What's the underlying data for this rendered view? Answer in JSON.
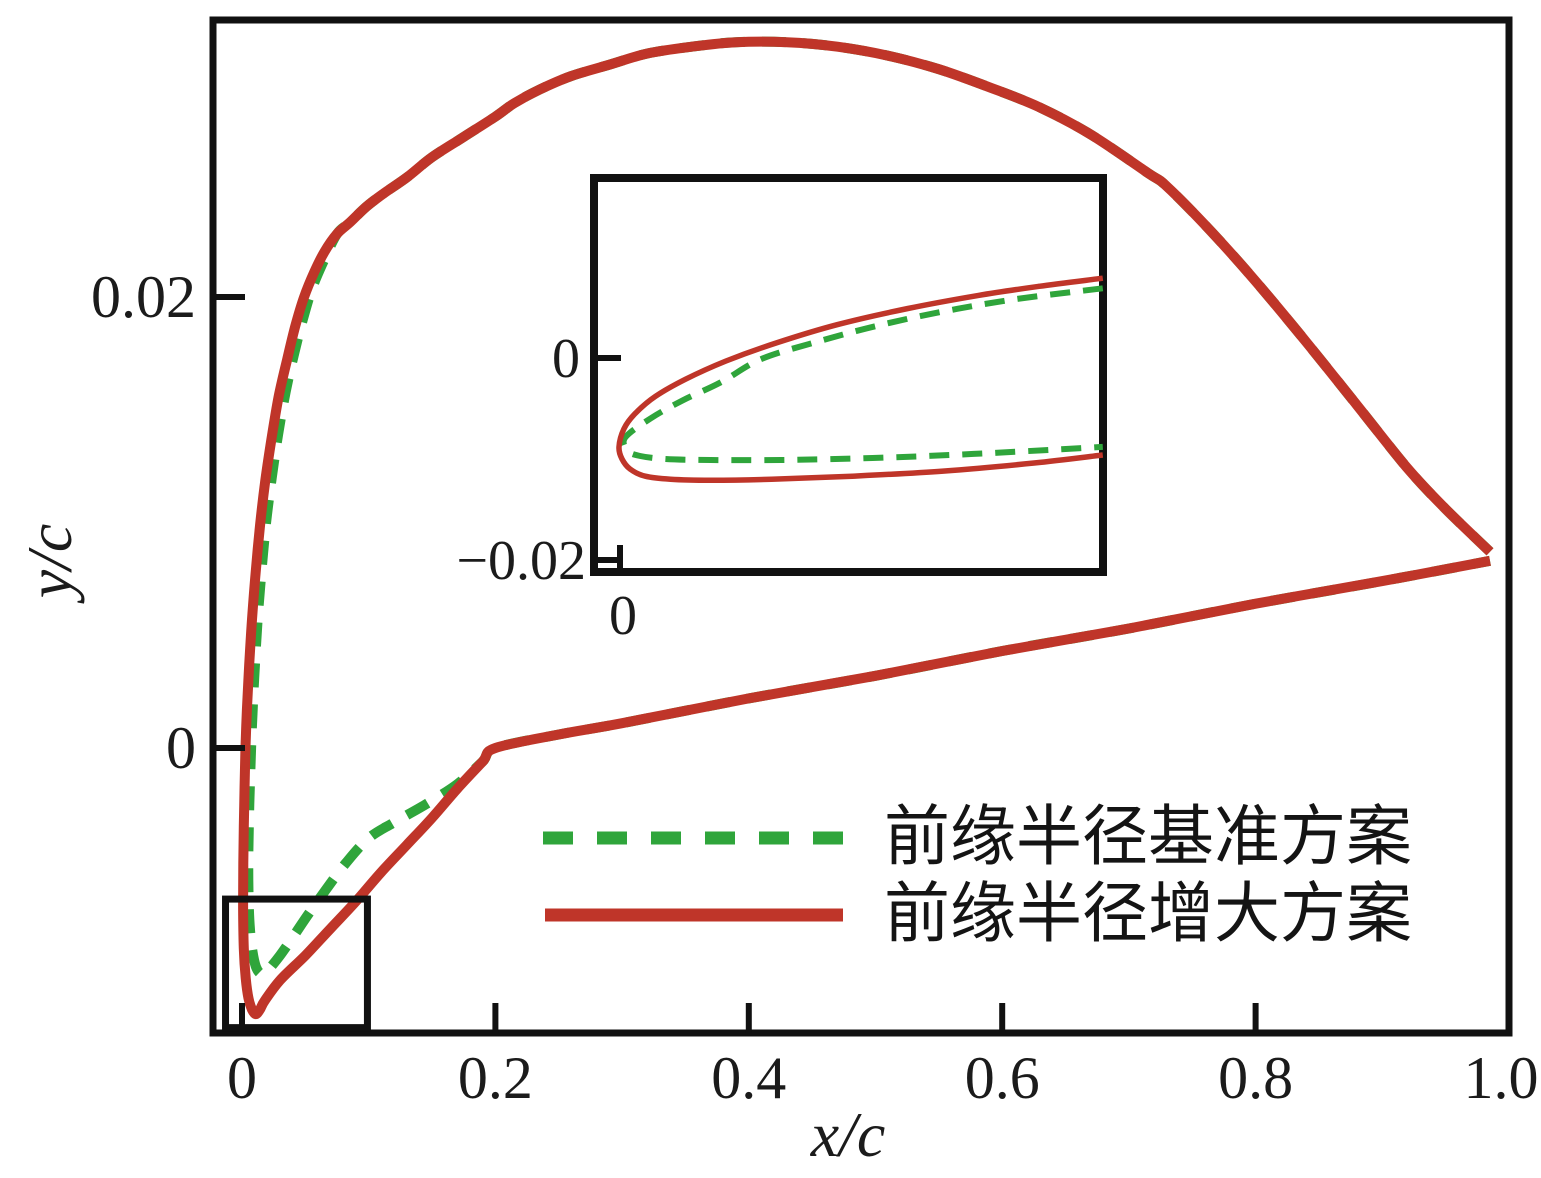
{
  "figure": {
    "xlabel": "x/c",
    "ylabel": "y/c",
    "colors": {
      "baseline_green": "#2fa53b",
      "increased_red": "#bf3529",
      "axis_black": "#111111",
      "text": "#1b1b1b",
      "background": "#ffffff"
    },
    "legend": [
      {
        "label": "前缘半径基准方案",
        "style": "dashed",
        "color": "#2fa53b"
      },
      {
        "label": "前缘半径增大方案",
        "style": "solid",
        "color": "#bf3529"
      }
    ]
  },
  "chart_data": {
    "type": "line",
    "title": "",
    "xlabel": "x/c",
    "ylabel": "y/c",
    "grid": false,
    "legend_position": "lower right inside",
    "xlim": [
      -0.023,
      1.0
    ],
    "ylim": [
      -0.0126,
      0.0324
    ],
    "x_ticks": [
      0,
      0.2,
      0.4,
      0.6,
      0.8,
      1.0
    ],
    "x_tick_labels": [
      "0",
      "0.2",
      "0.4",
      "0.6",
      "0.8",
      "1.0"
    ],
    "y_ticks": [
      0.02,
      0
    ],
    "y_tick_labels": [
      "0.02",
      "0"
    ],
    "zoom_rect": {
      "x": [
        -0.013,
        0.099
      ],
      "y": [
        -0.0124,
        -0.0067
      ]
    },
    "series": [
      {
        "name": "前缘半径基准方案",
        "color": "#2fa53b",
        "line": "dashed",
        "points": [
          [
            0.985,
            0.0087
          ],
          [
            0.95,
            0.0106
          ],
          [
            0.92,
            0.0124
          ],
          [
            0.88,
            0.0152
          ],
          [
            0.84,
            0.018
          ],
          [
            0.8,
            0.0207
          ],
          [
            0.765,
            0.0229
          ],
          [
            0.73,
            0.0249
          ],
          [
            0.715,
            0.0255
          ],
          [
            0.67,
            0.0272
          ],
          [
            0.63,
            0.0284
          ],
          [
            0.59,
            0.0293
          ],
          [
            0.55,
            0.0301
          ],
          [
            0.51,
            0.0307
          ],
          [
            0.47,
            0.0311
          ],
          [
            0.43,
            0.0313
          ],
          [
            0.39,
            0.0313
          ],
          [
            0.355,
            0.0311
          ],
          [
            0.32,
            0.0308
          ],
          [
            0.29,
            0.0303
          ],
          [
            0.26,
            0.0298
          ],
          [
            0.235,
            0.0292
          ],
          [
            0.215,
            0.0286
          ],
          [
            0.2,
            0.028
          ],
          [
            0.175,
            0.0271
          ],
          [
            0.15,
            0.0262
          ],
          [
            0.13,
            0.0253
          ],
          [
            0.112,
            0.0246
          ],
          [
            0.098,
            0.024
          ],
          [
            0.085,
            0.0233
          ],
          [
            0.075,
            0.0228
          ],
          [
            0.0645,
            0.0216
          ],
          [
            0.0555,
            0.0204
          ],
          [
            0.048,
            0.019
          ],
          [
            0.0412,
            0.0175
          ],
          [
            0.0345,
            0.0158
          ],
          [
            0.0285,
            0.0139
          ],
          [
            0.0235,
            0.012
          ],
          [
            0.019,
            0.01
          ],
          [
            0.0155,
            0.0079
          ],
          [
            0.0125,
            0.0058
          ],
          [
            0.0103,
            0.0038
          ],
          [
            0.0085,
            0.0018
          ],
          [
            0.0072,
            0.0
          ],
          [
            0.0058,
            -0.0025
          ],
          [
            0.005,
            -0.0048
          ],
          [
            0.0052,
            -0.0066
          ],
          [
            0.0062,
            -0.008
          ],
          [
            0.0082,
            -0.009
          ],
          [
            0.011,
            -0.0097
          ],
          [
            0.0145,
            -0.01
          ],
          [
            0.0185,
            -0.01
          ],
          [
            0.023,
            -0.0097
          ],
          [
            0.03,
            -0.0092
          ],
          [
            0.04,
            -0.0084
          ],
          [
            0.052,
            -0.0074
          ],
          [
            0.066,
            -0.0063
          ],
          [
            0.082,
            -0.0051
          ],
          [
            0.1,
            -0.004
          ],
          [
            0.12,
            -0.0033
          ],
          [
            0.145,
            -0.0025
          ],
          [
            0.17,
            -0.0016
          ],
          [
            0.19,
            -0.0006
          ],
          [
            0.2,
            0.0
          ],
          [
            0.25,
            0.0006
          ],
          [
            0.3,
            0.0011
          ],
          [
            0.4,
            0.0022
          ],
          [
            0.5,
            0.0032
          ],
          [
            0.6,
            0.0043
          ],
          [
            0.7,
            0.0053
          ],
          [
            0.8,
            0.0064
          ],
          [
            0.9,
            0.0074
          ],
          [
            0.985,
            0.0083
          ]
        ]
      },
      {
        "name": "前缘半径增大方案",
        "color": "#bf3529",
        "line": "solid",
        "points": [
          [
            0.985,
            0.0087
          ],
          [
            0.95,
            0.0106
          ],
          [
            0.92,
            0.0124
          ],
          [
            0.88,
            0.0152
          ],
          [
            0.84,
            0.018
          ],
          [
            0.8,
            0.0207
          ],
          [
            0.765,
            0.0229
          ],
          [
            0.73,
            0.0249
          ],
          [
            0.715,
            0.0255
          ],
          [
            0.67,
            0.0272
          ],
          [
            0.63,
            0.0284
          ],
          [
            0.59,
            0.0293
          ],
          [
            0.55,
            0.0301
          ],
          [
            0.51,
            0.0307
          ],
          [
            0.47,
            0.0311
          ],
          [
            0.43,
            0.0313
          ],
          [
            0.39,
            0.0313
          ],
          [
            0.355,
            0.0311
          ],
          [
            0.32,
            0.0308
          ],
          [
            0.29,
            0.0303
          ],
          [
            0.26,
            0.0298
          ],
          [
            0.235,
            0.0292
          ],
          [
            0.215,
            0.0286
          ],
          [
            0.2,
            0.028
          ],
          [
            0.175,
            0.0271
          ],
          [
            0.15,
            0.0262
          ],
          [
            0.13,
            0.0253
          ],
          [
            0.112,
            0.0246
          ],
          [
            0.098,
            0.024
          ],
          [
            0.085,
            0.0233
          ],
          [
            0.075,
            0.0228
          ],
          [
            0.065,
            0.022
          ],
          [
            0.057,
            0.0211
          ],
          [
            0.049,
            0.02
          ],
          [
            0.042,
            0.0187
          ],
          [
            0.0355,
            0.0172
          ],
          [
            0.029,
            0.0156
          ],
          [
            0.0235,
            0.0138
          ],
          [
            0.0185,
            0.0119
          ],
          [
            0.0143,
            0.0099
          ],
          [
            0.0108,
            0.0078
          ],
          [
            0.0079,
            0.0057
          ],
          [
            0.0057,
            0.0037
          ],
          [
            0.0039,
            0.0017
          ],
          [
            0.0027,
            -0.0001
          ],
          [
            0.0017,
            -0.0026
          ],
          [
            0.001,
            -0.0051
          ],
          [
            0.0009,
            -0.0071
          ],
          [
            0.0014,
            -0.0089
          ],
          [
            0.0029,
            -0.0102
          ],
          [
            0.0051,
            -0.0111
          ],
          [
            0.0079,
            -0.0116
          ],
          [
            0.0109,
            -0.0118
          ],
          [
            0.0141,
            -0.0116
          ],
          [
            0.018,
            -0.0112
          ],
          [
            0.03,
            -0.0103
          ],
          [
            0.05,
            -0.0092
          ],
          [
            0.07,
            -0.008
          ],
          [
            0.09,
            -0.0068
          ],
          [
            0.11,
            -0.0055
          ],
          [
            0.13,
            -0.0043
          ],
          [
            0.15,
            -0.0031
          ],
          [
            0.17,
            -0.0018
          ],
          [
            0.19,
            -0.0006
          ],
          [
            0.2,
            0.0
          ],
          [
            0.25,
            0.0006
          ],
          [
            0.3,
            0.0011
          ],
          [
            0.4,
            0.0022
          ],
          [
            0.5,
            0.0032
          ],
          [
            0.6,
            0.0043
          ],
          [
            0.7,
            0.0053
          ],
          [
            0.8,
            0.0064
          ],
          [
            0.9,
            0.0074
          ],
          [
            0.985,
            0.0083
          ]
        ]
      }
    ],
    "inset": {
      "description": "leading-edge close-up",
      "xlim": [
        -0.0026,
        0.0478
      ],
      "ylim": [
        -0.0212,
        0.0178
      ],
      "x_ticks": [
        0
      ],
      "x_tick_labels": [
        "0"
      ],
      "y_ticks": [
        0,
        -0.02
      ],
      "y_tick_labels": [
        "0",
        "−0.02"
      ],
      "series": [
        {
          "name": "前缘半径基准方案",
          "color": "#2fa53b",
          "line": "dashed",
          "points": [
            [
              0.0478,
              0.0069
            ],
            [
              0.039,
              0.0058
            ],
            [
              0.032,
              0.0046
            ],
            [
              0.0255,
              0.0032
            ],
            [
              0.0195,
              0.0016
            ],
            [
              0.014,
              -0.0001
            ],
            [
              0.01,
              -0.0024
            ],
            [
              0.0062,
              -0.0042
            ],
            [
              0.003,
              -0.006
            ],
            [
              0.0005,
              -0.0079
            ],
            [
              0.0008,
              -0.0092
            ],
            [
              0.002,
              -0.0097
            ],
            [
              0.0045,
              -0.01
            ],
            [
              0.009,
              -0.0101
            ],
            [
              0.016,
              -0.0101
            ],
            [
              0.025,
              -0.0099
            ],
            [
              0.035,
              -0.0095
            ],
            [
              0.0478,
              -0.0088
            ]
          ]
        },
        {
          "name": "前缘半径增大方案",
          "color": "#bf3529",
          "line": "solid",
          "points": [
            [
              0.0478,
              0.0079
            ],
            [
              0.0415,
              0.0071
            ],
            [
              0.0355,
              0.0062
            ],
            [
              0.0285,
              0.0049
            ],
            [
              0.0215,
              0.0033
            ],
            [
              0.0155,
              0.0015
            ],
            [
              0.0105,
              -0.0003
            ],
            [
              0.0065,
              -0.0021
            ],
            [
              0.0035,
              -0.0038
            ],
            [
              0.0015,
              -0.0055
            ],
            [
              0.0004,
              -0.007
            ],
            [
              -0.0001,
              -0.0088
            ],
            [
              0.0002,
              -0.01
            ],
            [
              0.001,
              -0.011
            ],
            [
              0.0025,
              -0.0117
            ],
            [
              0.005,
              -0.012
            ],
            [
              0.009,
              -0.0121
            ],
            [
              0.015,
              -0.012
            ],
            [
              0.023,
              -0.0117
            ],
            [
              0.032,
              -0.0112
            ],
            [
              0.041,
              -0.0104
            ],
            [
              0.0478,
              -0.0096
            ]
          ]
        }
      ]
    }
  }
}
